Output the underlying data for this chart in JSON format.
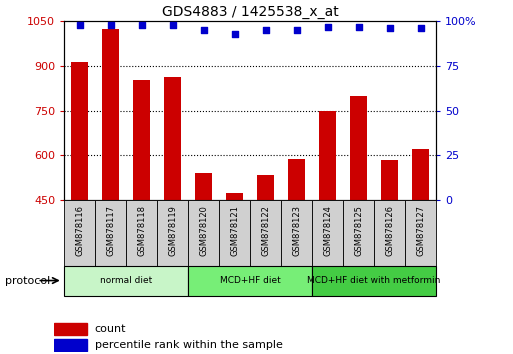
{
  "title": "GDS4883 / 1425538_x_at",
  "samples": [
    "GSM878116",
    "GSM878117",
    "GSM878118",
    "GSM878119",
    "GSM878120",
    "GSM878121",
    "GSM878122",
    "GSM878123",
    "GSM878124",
    "GSM878125",
    "GSM878126",
    "GSM878127"
  ],
  "bar_values": [
    912,
    1025,
    852,
    862,
    540,
    475,
    535,
    587,
    748,
    800,
    585,
    620
  ],
  "dot_values": [
    98,
    98,
    98,
    98,
    95,
    93,
    95,
    95,
    97,
    97,
    96,
    96
  ],
  "ylim_left": [
    450,
    1050
  ],
  "ylim_right": [
    0,
    100
  ],
  "yticks_left": [
    450,
    600,
    750,
    900,
    1050
  ],
  "yticks_right": [
    0,
    25,
    50,
    75,
    100
  ],
  "ytick_labels_right": [
    "0",
    "25",
    "50",
    "75",
    "100%"
  ],
  "bar_color": "#cc0000",
  "dot_color": "#0000cc",
  "tick_label_color_left": "#cc0000",
  "tick_label_color_right": "#0000cc",
  "groups": [
    {
      "label": "normal diet",
      "start": 0,
      "end": 4,
      "color": "#c8f5c8"
    },
    {
      "label": "MCD+HF diet",
      "start": 4,
      "end": 8,
      "color": "#77ee77"
    },
    {
      "label": "MCD+HF diet with metformin",
      "start": 8,
      "end": 12,
      "color": "#44cc44"
    }
  ],
  "protocol_label": "protocol",
  "legend_count_label": "count",
  "legend_percentile_label": "percentile rank within the sample",
  "sample_bg_color": "#d0d0d0",
  "bar_width": 0.55
}
